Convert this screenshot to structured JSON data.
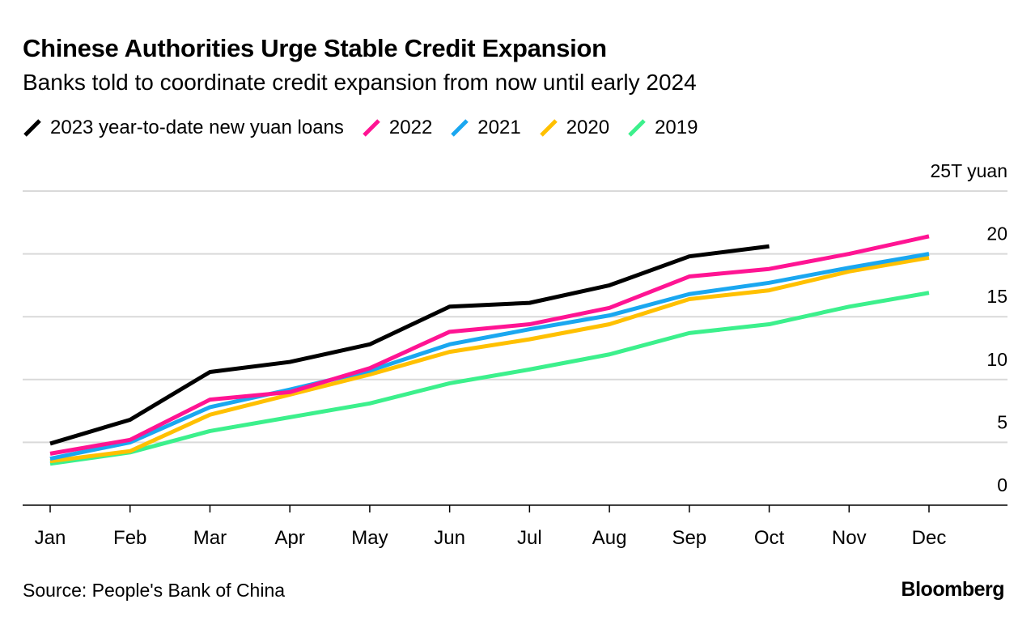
{
  "title": "Chinese Authorities Urge Stable Credit Expansion",
  "subtitle": "Banks told to coordinate credit expansion from now until early 2024",
  "source": "Source: People's Bank of China",
  "logo": "Bloomberg",
  "chart_data": {
    "type": "line",
    "title": "Chinese Authorities Urge Stable Credit Expansion",
    "subtitle": "Banks told to coordinate credit expansion from now until early 2024",
    "categories": [
      "Jan",
      "Feb",
      "Mar",
      "Apr",
      "May",
      "Jun",
      "Jul",
      "Aug",
      "Sep",
      "Oct",
      "Nov",
      "Dec"
    ],
    "y_unit_label": "25T yuan",
    "ylim": [
      0,
      25
    ],
    "y_ticks": [
      0,
      5,
      10,
      15,
      20,
      25
    ],
    "y_tick_labels": [
      "0",
      "5",
      "10",
      "15",
      "20",
      "25T yuan"
    ],
    "y_axis_position": "right",
    "grid": true,
    "legend_position": "top",
    "series": [
      {
        "name": "2023 year-to-date new yuan loans",
        "color": "#000000",
        "values": [
          4.9,
          6.8,
          10.6,
          11.4,
          12.8,
          15.8,
          16.1,
          17.5,
          19.8,
          20.6,
          null,
          null
        ]
      },
      {
        "name": "2022",
        "color": "#ff1493",
        "values": [
          4.1,
          5.2,
          8.4,
          9.0,
          10.9,
          13.8,
          14.4,
          15.7,
          18.2,
          18.8,
          20.0,
          21.4
        ]
      },
      {
        "name": "2021",
        "color": "#1aa7f0",
        "values": [
          3.7,
          5.0,
          7.8,
          9.2,
          10.7,
          12.8,
          14.0,
          15.1,
          16.8,
          17.7,
          18.9,
          20.0
        ]
      },
      {
        "name": "2020",
        "color": "#ffc000",
        "values": [
          3.5,
          4.3,
          7.2,
          8.8,
          10.4,
          12.2,
          13.2,
          14.4,
          16.4,
          17.1,
          18.6,
          19.7
        ]
      },
      {
        "name": "2019",
        "color": "#3cf08c",
        "values": [
          3.3,
          4.2,
          5.9,
          7.0,
          8.1,
          9.7,
          10.8,
          12.0,
          13.7,
          14.4,
          15.8,
          16.9
        ]
      }
    ]
  }
}
